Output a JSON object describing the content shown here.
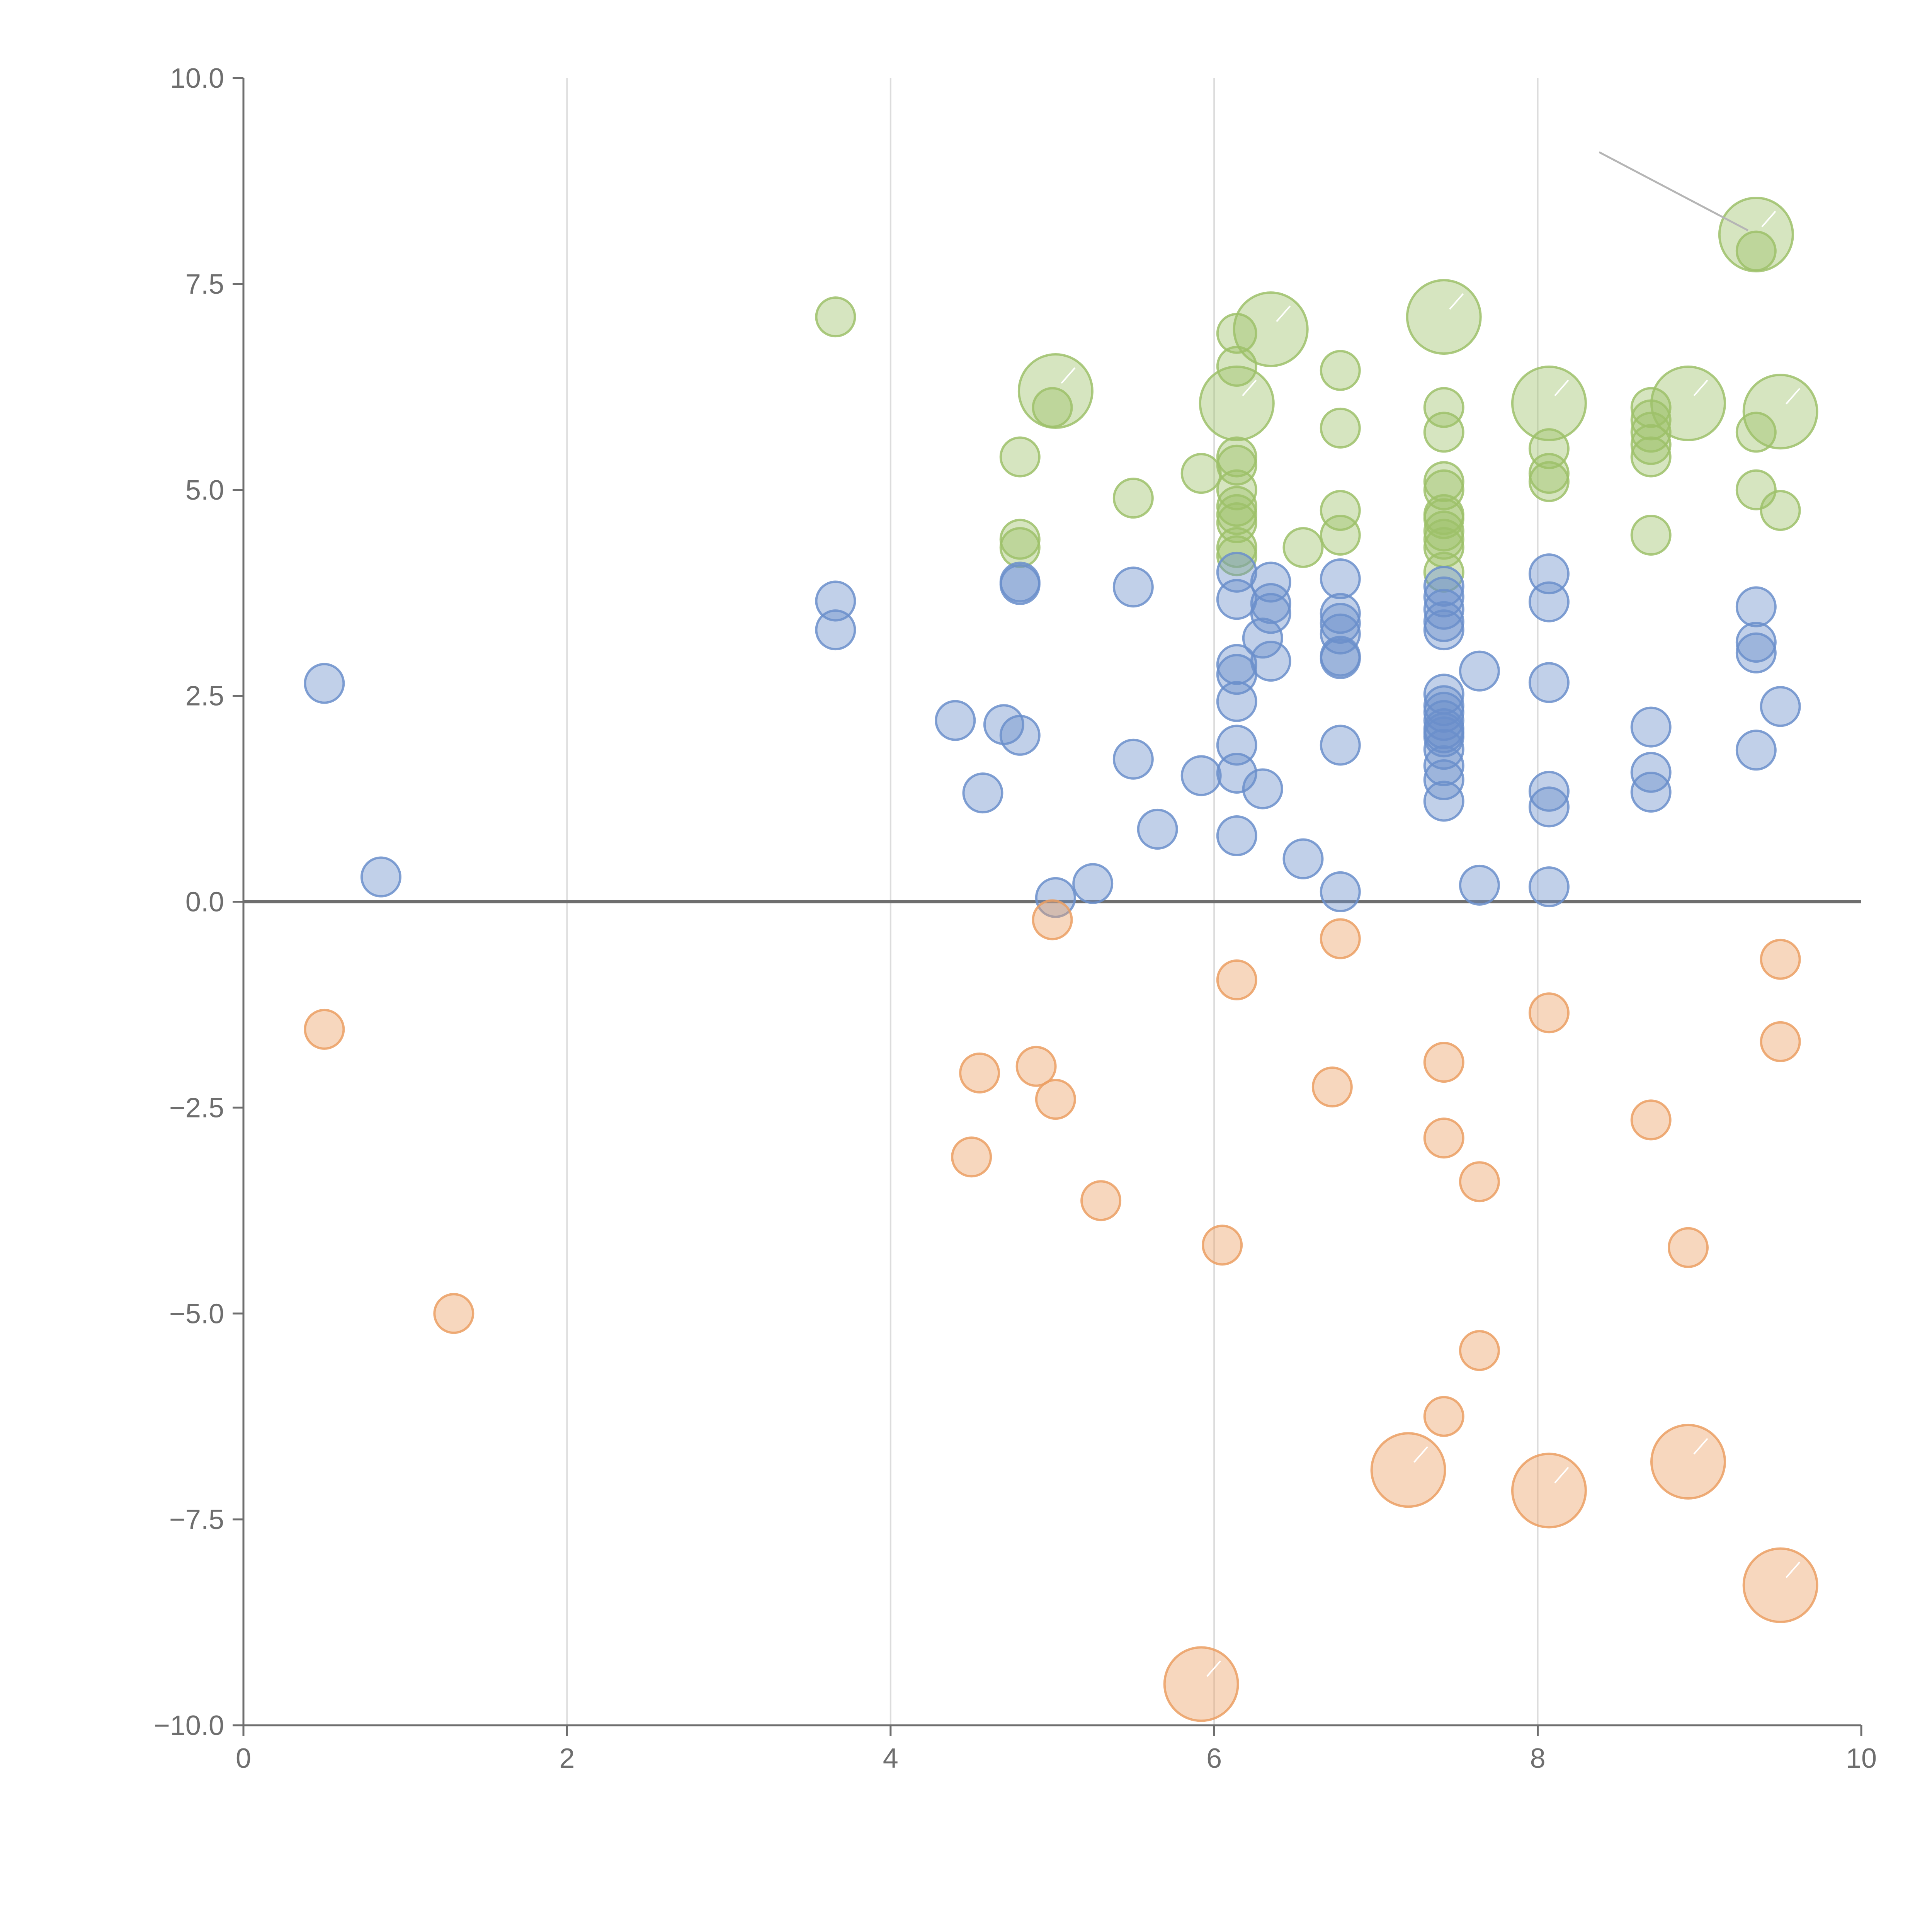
{
  "chart_data": {
    "type": "scatter",
    "title": "",
    "xlabel": "",
    "ylabel": "",
    "xlim": [
      0,
      10
    ],
    "ylim": [
      -10,
      10
    ],
    "x_ticks": [
      "0",
      "2",
      "4",
      "6",
      "8",
      "10"
    ],
    "y_ticks": [
      "10.0",
      "7.5",
      "5.0",
      "2.5",
      "0.0",
      "−2.5",
      "−5.0",
      "−7.5",
      "−10.0"
    ],
    "grid": "vertical",
    "zero_line": true,
    "colors": {
      "green": "#9dc16a",
      "blue": "#6b8fcb",
      "orange": "#eb9f63"
    },
    "series": [
      {
        "color": "green",
        "points": [
          [
            3.66,
            7.1
          ],
          [
            4.8,
            5.4
          ],
          [
            4.8,
            4.4
          ],
          [
            4.8,
            4.3
          ],
          [
            5.0,
            6.0
          ],
          [
            5.5,
            4.9
          ],
          [
            5.92,
            5.2
          ],
          [
            6.14,
            6.9
          ],
          [
            6.14,
            6.5
          ],
          [
            6.14,
            5.4
          ],
          [
            6.14,
            5.3
          ],
          [
            6.14,
            5.0
          ],
          [
            6.14,
            4.8
          ],
          [
            6.14,
            4.7
          ],
          [
            6.14,
            4.6
          ],
          [
            6.14,
            4.3
          ],
          [
            6.14,
            4.2
          ],
          [
            6.55,
            4.3
          ],
          [
            6.78,
            6.45
          ],
          [
            6.78,
            5.75
          ],
          [
            6.78,
            4.75
          ],
          [
            6.78,
            4.45
          ],
          [
            7.42,
            6.0
          ],
          [
            7.42,
            5.7
          ],
          [
            7.42,
            5.1
          ],
          [
            7.42,
            5.0
          ],
          [
            7.42,
            4.7
          ],
          [
            7.42,
            4.65
          ],
          [
            7.42,
            4.5
          ],
          [
            7.42,
            4.4
          ],
          [
            7.42,
            4.3
          ],
          [
            7.42,
            4.0
          ],
          [
            8.07,
            5.5
          ],
          [
            8.07,
            5.2
          ],
          [
            8.07,
            5.1
          ],
          [
            8.7,
            6.0
          ],
          [
            8.7,
            5.85
          ],
          [
            8.7,
            5.7
          ],
          [
            8.7,
            5.55
          ],
          [
            8.7,
            5.4
          ],
          [
            8.7,
            4.45
          ],
          [
            9.35,
            7.9
          ],
          [
            9.35,
            5.7
          ],
          [
            9.35,
            5.0
          ],
          [
            9.5,
            4.75
          ]
        ],
        "bubbles": [
          [
            5.02,
            6.2
          ],
          [
            6.14,
            6.05
          ],
          [
            6.35,
            6.95
          ],
          [
            7.42,
            7.1
          ],
          [
            8.07,
            6.05
          ],
          [
            8.93,
            6.05
          ],
          [
            9.35,
            8.1
          ],
          [
            9.5,
            5.95
          ]
        ]
      },
      {
        "color": "blue",
        "points": [
          [
            0.5,
            2.65
          ],
          [
            0.85,
            0.3
          ],
          [
            3.66,
            3.65
          ],
          [
            3.66,
            3.3
          ],
          [
            4.4,
            2.2
          ],
          [
            4.57,
            1.32
          ],
          [
            4.7,
            2.15
          ],
          [
            4.8,
            3.88
          ],
          [
            4.8,
            3.85
          ],
          [
            4.8,
            2.02
          ],
          [
            5.02,
            0.05
          ],
          [
            5.25,
            0.22
          ],
          [
            5.5,
            3.82
          ],
          [
            5.5,
            1.73
          ],
          [
            5.65,
            0.88
          ],
          [
            5.92,
            1.53
          ],
          [
            6.14,
            4.0
          ],
          [
            6.14,
            3.67
          ],
          [
            6.14,
            2.88
          ],
          [
            6.14,
            2.76
          ],
          [
            6.14,
            2.43
          ],
          [
            6.14,
            1.9
          ],
          [
            6.14,
            1.56
          ],
          [
            6.14,
            0.8
          ],
          [
            6.3,
            3.2
          ],
          [
            6.3,
            1.37
          ],
          [
            6.35,
            3.88
          ],
          [
            6.35,
            3.62
          ],
          [
            6.35,
            3.5
          ],
          [
            6.35,
            2.92
          ],
          [
            6.55,
            0.52
          ],
          [
            6.78,
            3.92
          ],
          [
            6.78,
            3.5
          ],
          [
            6.78,
            3.38
          ],
          [
            6.78,
            3.25
          ],
          [
            6.78,
            2.98
          ],
          [
            6.78,
            2.95
          ],
          [
            6.78,
            1.9
          ],
          [
            6.78,
            0.12
          ],
          [
            7.42,
            3.83
          ],
          [
            7.42,
            3.7
          ],
          [
            7.42,
            3.55
          ],
          [
            7.42,
            3.4
          ],
          [
            7.42,
            3.3
          ],
          [
            7.42,
            2.52
          ],
          [
            7.42,
            2.38
          ],
          [
            7.42,
            2.3
          ],
          [
            7.42,
            2.2
          ],
          [
            7.42,
            2.1
          ],
          [
            7.42,
            2.05
          ],
          [
            7.42,
            2.0
          ],
          [
            7.42,
            1.85
          ],
          [
            7.42,
            1.65
          ],
          [
            7.42,
            1.48
          ],
          [
            7.42,
            1.22
          ],
          [
            7.64,
            2.8
          ],
          [
            7.64,
            0.2
          ],
          [
            8.07,
            3.98
          ],
          [
            8.07,
            3.64
          ],
          [
            8.07,
            2.66
          ],
          [
            8.07,
            1.34
          ],
          [
            8.07,
            1.15
          ],
          [
            8.07,
            0.18
          ],
          [
            8.7,
            2.12
          ],
          [
            8.7,
            1.57
          ],
          [
            8.7,
            1.33
          ],
          [
            9.35,
            3.58
          ],
          [
            9.35,
            3.15
          ],
          [
            9.35,
            3.02
          ],
          [
            9.35,
            1.84
          ],
          [
            9.5,
            2.37
          ]
        ],
        "bubbles": []
      },
      {
        "color": "orange",
        "points": [
          [
            0.5,
            -1.55
          ],
          [
            1.3,
            -5.0
          ],
          [
            4.5,
            -3.1
          ],
          [
            4.55,
            -2.08
          ],
          [
            4.9,
            -2.0
          ],
          [
            5.0,
            -0.22
          ],
          [
            5.02,
            -2.4
          ],
          [
            5.3,
            -3.63
          ],
          [
            6.05,
            -4.17
          ],
          [
            6.14,
            -0.95
          ],
          [
            6.73,
            -2.25
          ],
          [
            6.78,
            -0.45
          ],
          [
            7.42,
            -1.95
          ],
          [
            7.42,
            -2.87
          ],
          [
            7.42,
            -6.25
          ],
          [
            7.64,
            -3.4
          ],
          [
            7.64,
            -5.45
          ],
          [
            8.07,
            -1.35
          ],
          [
            8.7,
            -2.65
          ],
          [
            8.93,
            -4.2
          ],
          [
            9.5,
            -0.7
          ],
          [
            9.5,
            -1.7
          ]
        ],
        "bubbles": [
          [
            5.92,
            -9.5
          ],
          [
            7.2,
            -6.9
          ],
          [
            8.07,
            -7.15
          ],
          [
            8.93,
            -6.8
          ],
          [
            9.5,
            -8.3
          ]
        ]
      }
    ]
  }
}
